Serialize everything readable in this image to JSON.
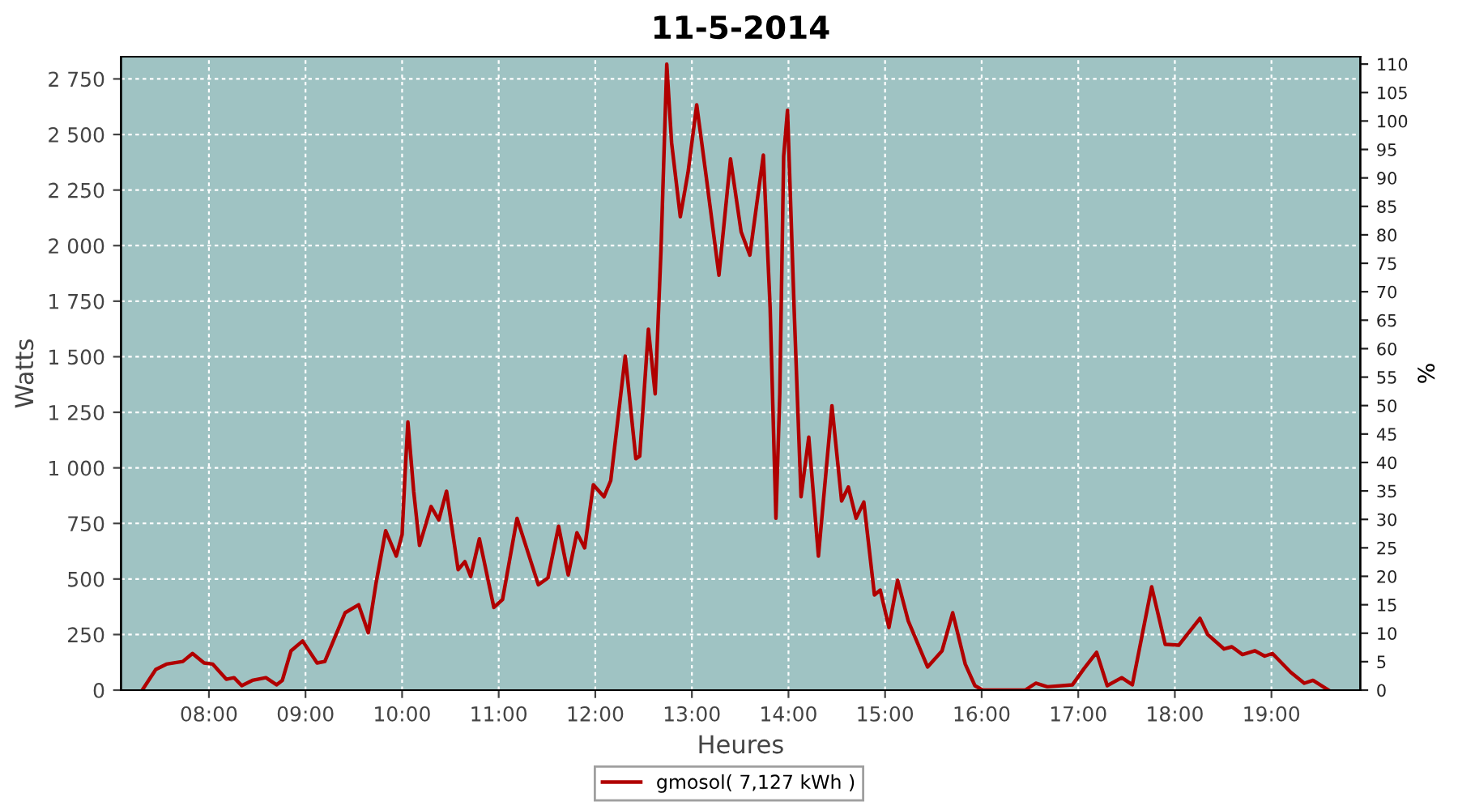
{
  "chart_data": {
    "type": "line",
    "title": "11-5-2014",
    "xlabel": "Heures",
    "ylabel": "Watts",
    "y2label": "%",
    "x": [
      7.31,
      7.45,
      7.56,
      7.73,
      7.83,
      7.95,
      8.04,
      8.18,
      8.26,
      8.34,
      8.45,
      8.59,
      8.7,
      8.76,
      8.85,
      8.97,
      9.12,
      9.2,
      9.41,
      9.55,
      9.65,
      9.73,
      9.83,
      9.94,
      10.0,
      10.03,
      10.06,
      10.12,
      10.18,
      10.3,
      10.38,
      10.46,
      10.58,
      10.65,
      10.71,
      10.8,
      10.95,
      11.04,
      11.19,
      11.41,
      11.51,
      11.62,
      11.72,
      11.81,
      11.89,
      11.98,
      12.09,
      12.16,
      12.31,
      12.42,
      12.46,
      12.55,
      12.62,
      12.68,
      12.74,
      12.79,
      12.88,
      12.96,
      13.05,
      13.15,
      13.28,
      13.4,
      13.51,
      13.6,
      13.74,
      13.81,
      13.87,
      13.91,
      13.95,
      13.99,
      14.06,
      14.13,
      14.21,
      14.31,
      14.45,
      14.55,
      14.62,
      14.7,
      14.78,
      14.89,
      14.95,
      15.04,
      15.13,
      15.24,
      15.44,
      15.59,
      15.7,
      15.83,
      15.93,
      16.01,
      16.45,
      16.56,
      16.68,
      16.94,
      17.06,
      17.19,
      17.3,
      17.45,
      17.56,
      17.76,
      17.9,
      18.04,
      18.26,
      18.34,
      18.51,
      18.59,
      18.7,
      18.83,
      18.93,
      19.01,
      19.2,
      19.34,
      19.43,
      19.59
    ],
    "series": [
      {
        "name": "gmosol( 7,127 kWh )",
        "color": "#b00000",
        "values": [
          0,
          93,
          117,
          129,
          165,
          122,
          117,
          49,
          56,
          20,
          44,
          56,
          24,
          44,
          177,
          221,
          122,
          129,
          348,
          384,
          258,
          481,
          717,
          603,
          700,
          968,
          1206,
          895,
          651,
          826,
          766,
          895,
          542,
          578,
          511,
          681,
          372,
          408,
          773,
          474,
          505,
          737,
          518,
          708,
          640,
          924,
          870,
          943,
          1503,
          1041,
          1053,
          1624,
          1333,
          1977,
          2816,
          2463,
          2130,
          2329,
          2633,
          2305,
          1867,
          2390,
          2062,
          1957,
          2407,
          1721,
          773,
          1333,
          2402,
          2609,
          1697,
          870,
          1138,
          603,
          1279,
          851,
          914,
          773,
          846,
          428,
          450,
          282,
          494,
          311,
          104,
          177,
          348,
          117,
          20,
          0,
          0,
          31,
          15,
          24,
          97,
          170,
          20,
          56,
          24,
          465,
          206,
          202,
          323,
          250,
          185,
          195,
          160,
          177,
          153,
          165,
          80,
          31,
          44,
          0
        ]
      }
    ],
    "xlim": [
      7.09,
      19.92
    ],
    "xticks": [
      {
        "value": 8,
        "label": "08:00"
      },
      {
        "value": 9,
        "label": "09:00"
      },
      {
        "value": 10,
        "label": "10:00"
      },
      {
        "value": 11,
        "label": "11:00"
      },
      {
        "value": 12,
        "label": "12:00"
      },
      {
        "value": 13,
        "label": "13:00"
      },
      {
        "value": 14,
        "label": "14:00"
      },
      {
        "value": 15,
        "label": "15:00"
      },
      {
        "value": 16,
        "label": "16:00"
      },
      {
        "value": 17,
        "label": "17:00"
      },
      {
        "value": 18,
        "label": "18:00"
      },
      {
        "value": 19,
        "label": "19:00"
      }
    ],
    "ylim": [
      0,
      2850
    ],
    "yticks": [
      0,
      250,
      500,
      750,
      {
        "value": 1000,
        "label": "1 000"
      },
      {
        "value": 1250,
        "label": "1 250"
      },
      {
        "value": 1500,
        "label": "1 500"
      },
      {
        "value": 1750,
        "label": "1 750"
      },
      {
        "value": 2000,
        "label": "2 000"
      },
      {
        "value": 2250,
        "label": "2 250"
      },
      {
        "value": 2500,
        "label": "2 500"
      },
      {
        "value": 2750,
        "label": "2 750"
      }
    ],
    "y2lim": [
      0,
      111.3
    ],
    "y2ticks": [
      0,
      5,
      10,
      15,
      20,
      25,
      30,
      35,
      40,
      45,
      50,
      55,
      60,
      65,
      70,
      75,
      80,
      85,
      90,
      95,
      100,
      105,
      110
    ],
    "grid": true,
    "legend": "bottom",
    "line_style": "solid",
    "marker": "none"
  }
}
